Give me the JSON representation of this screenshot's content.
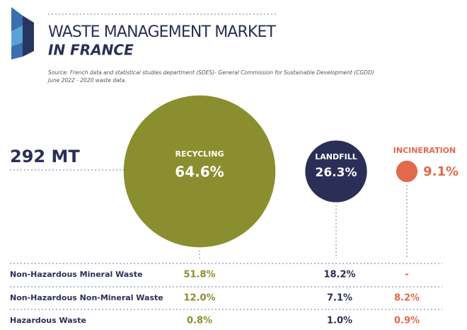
{
  "header": {
    "title": "WASTE MANAGEMENT MARKET",
    "subtitle": "IN FRANCE",
    "source": [
      "Source: French data and statistical studies department (SDES)- General Commission for Sustainable Development (CGDD)",
      "June 2022 - 2020 waste data."
    ]
  },
  "total": "292 MT",
  "bubbles": [
    {
      "label": "RECYCLING",
      "value": 64.6,
      "value_label": "64.6%",
      "color": "#8b8e2e"
    },
    {
      "label": "LANDFILL",
      "value": 26.3,
      "value_label": "26.3%",
      "color": "#2b2f57"
    },
    {
      "label": "INCINERATION",
      "value": 9.1,
      "value_label": "9.1%",
      "color": "#e2694b"
    }
  ],
  "table": {
    "rows": [
      [
        "Non-Hazardous Mineral Waste",
        "51.8%",
        "18.2%",
        "-"
      ],
      [
        "Non-Hazardous Non-Mineral Waste",
        "12.0%",
        "7.1%",
        "8.2%"
      ],
      [
        "Hazardous Waste",
        "0.8%",
        "1.0%",
        "0.9%"
      ]
    ]
  }
}
